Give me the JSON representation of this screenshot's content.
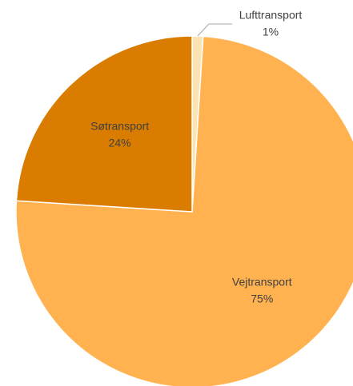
{
  "chart_data": {
    "type": "pie",
    "categories": [
      "Lufttransport",
      "Vejtransport",
      "Søtransport"
    ],
    "values": [
      1,
      75,
      24
    ],
    "value_labels": [
      "1%",
      "75%",
      "24%"
    ],
    "colors": [
      "#fbe3b4",
      "#ffb24f",
      "#d97c00"
    ]
  }
}
